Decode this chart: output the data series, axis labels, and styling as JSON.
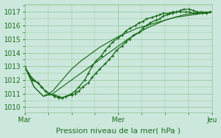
{
  "bg_color": "#cce8dd",
  "grid_color": "#8fbe8f",
  "line_color": "#1a6b1a",
  "marker_color": "#1a6b1a",
  "xlabel": "Pression niveau de la mer( hPa )",
  "xtick_labels": [
    "Mar",
    "Mer",
    "Jeu"
  ],
  "xtick_positions": [
    0.0,
    0.5,
    1.0
  ],
  "ytick_labels": [
    "1010",
    "1011",
    "1012",
    "1013",
    "1014",
    "1015",
    "1016",
    "1017"
  ],
  "ylim": [
    1009.6,
    1017.6
  ],
  "xlim": [
    0.0,
    1.0
  ],
  "series": [
    {
      "x": [
        0.0,
        0.02,
        0.04,
        0.07,
        0.09,
        0.11,
        0.13,
        0.16,
        0.18,
        0.2,
        0.22,
        0.25,
        0.27,
        0.29,
        0.31,
        0.34,
        0.36,
        0.38,
        0.4,
        0.43,
        0.45,
        0.47,
        0.49,
        0.52,
        0.54,
        0.56,
        0.58,
        0.61,
        0.63,
        0.65,
        0.67,
        0.7,
        0.72,
        0.74,
        0.76,
        0.79,
        0.81,
        0.83,
        0.85,
        0.88,
        0.9,
        0.92,
        0.94,
        0.97,
        0.99
      ],
      "y": [
        1013.0,
        1012.5,
        1012.0,
        1011.8,
        1011.5,
        1011.2,
        1011.0,
        1010.9,
        1010.8,
        1010.7,
        1010.8,
        1010.9,
        1011.0,
        1011.2,
        1011.5,
        1011.8,
        1012.2,
        1012.5,
        1012.8,
        1013.2,
        1013.5,
        1013.8,
        1014.2,
        1014.5,
        1014.8,
        1015.0,
        1015.3,
        1015.5,
        1015.8,
        1016.0,
        1016.2,
        1016.4,
        1016.5,
        1016.7,
        1016.8,
        1016.9,
        1017.0,
        1017.1,
        1017.2,
        1017.2,
        1017.1,
        1017.0,
        1017.0,
        1016.9,
        1017.0
      ],
      "marker": true,
      "lw": 1.0
    },
    {
      "x": [
        0.0,
        0.05,
        0.1,
        0.15,
        0.2,
        0.25,
        0.3,
        0.35,
        0.4,
        0.45,
        0.5,
        0.55,
        0.6,
        0.65,
        0.7,
        0.75,
        0.8,
        0.85,
        0.9,
        0.95,
        1.0
      ],
      "y": [
        1013.0,
        1011.5,
        1010.8,
        1011.0,
        1011.5,
        1012.0,
        1012.5,
        1013.0,
        1013.5,
        1014.0,
        1014.5,
        1015.0,
        1015.4,
        1015.8,
        1016.1,
        1016.4,
        1016.6,
        1016.8,
        1016.9,
        1017.0,
        1017.0
      ],
      "marker": false,
      "lw": 0.9
    },
    {
      "x": [
        0.0,
        0.05,
        0.1,
        0.15,
        0.2,
        0.25,
        0.3,
        0.35,
        0.4,
        0.45,
        0.5,
        0.55,
        0.6,
        0.65,
        0.7,
        0.75,
        0.8,
        0.85,
        0.9,
        0.95,
        1.0
      ],
      "y": [
        1013.0,
        1011.5,
        1010.8,
        1011.2,
        1012.0,
        1012.8,
        1013.4,
        1013.9,
        1014.4,
        1014.8,
        1015.2,
        1015.5,
        1015.8,
        1016.0,
        1016.2,
        1016.4,
        1016.6,
        1016.7,
        1016.8,
        1016.9,
        1017.0
      ],
      "marker": false,
      "lw": 0.9
    },
    {
      "x": [
        0.0,
        0.02,
        0.05,
        0.07,
        0.09,
        0.11,
        0.13,
        0.16,
        0.18,
        0.2,
        0.22,
        0.25,
        0.27,
        0.29,
        0.32,
        0.34,
        0.36,
        0.38,
        0.41,
        0.43,
        0.45,
        0.47,
        0.5,
        0.52,
        0.54,
        0.56,
        0.59,
        0.61,
        0.63,
        0.65,
        0.68,
        0.7,
        0.72,
        0.74,
        0.77,
        0.79,
        0.81,
        0.83,
        0.86,
        0.88,
        0.9,
        0.92,
        0.95,
        0.97,
        0.99
      ],
      "y": [
        1013.0,
        1012.5,
        1012.0,
        1011.8,
        1011.5,
        1011.2,
        1011.0,
        1010.8,
        1010.7,
        1010.7,
        1010.8,
        1011.0,
        1011.2,
        1011.5,
        1012.0,
        1012.5,
        1013.0,
        1013.4,
        1013.8,
        1014.2,
        1014.5,
        1014.8,
        1015.1,
        1015.3,
        1015.6,
        1015.8,
        1016.0,
        1016.2,
        1016.3,
        1016.5,
        1016.6,
        1016.7,
        1016.8,
        1016.9,
        1016.9,
        1017.0,
        1017.0,
        1017.0,
        1017.0,
        1017.0,
        1016.9,
        1016.9,
        1016.9,
        1016.9,
        1017.0
      ],
      "marker": true,
      "lw": 1.0
    }
  ],
  "font_size_label": 8,
  "font_size_tick": 7
}
